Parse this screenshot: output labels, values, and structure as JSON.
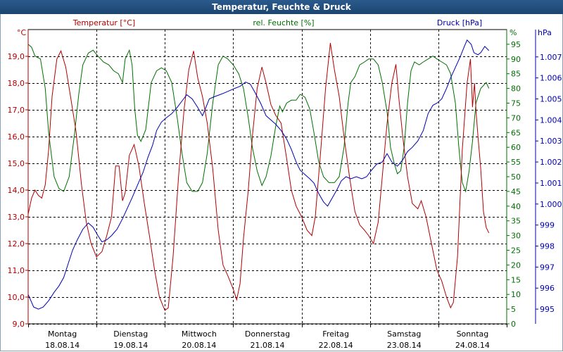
{
  "chart_data": {
    "type": "line",
    "title": "Temperatur, Feuchte & Druck",
    "series_labels": {
      "temp": "Temperatur [°C]",
      "hum": "rel. Feuchte [%]",
      "pres": "Druck [hPa]"
    },
    "unit_labels": {
      "temp": "°C",
      "hum": "%",
      "pres": "hPa"
    },
    "colors": {
      "temp": "#b00000",
      "hum": "#007000",
      "pres": "#0000b0",
      "title_bg": "#1f4f7e",
      "grid": "#000000"
    },
    "days": [
      {
        "name": "Montag",
        "date": "18.08.14"
      },
      {
        "name": "Dienstag",
        "date": "19.08.14"
      },
      {
        "name": "Mittwoch",
        "date": "20.08.14"
      },
      {
        "name": "Donnerstag",
        "date": "21.08.14"
      },
      {
        "name": "Freitag",
        "date": "22.08.14"
      },
      {
        "name": "Samstag",
        "date": "23.08.14"
      },
      {
        "name": "Sonntag",
        "date": "24.08.14"
      }
    ],
    "xlim_days": [
      0,
      7
    ],
    "temp_axis": {
      "ylim": [
        9.0,
        20.0
      ],
      "ticks": [
        "9,0",
        "10,0",
        "11,0",
        "12,0",
        "13,0",
        "14,0",
        "15,0",
        "16,0",
        "17,0",
        "18,0",
        "19,0"
      ]
    },
    "hum_axis": {
      "ylim": [
        0,
        100
      ],
      "ticks": [
        "0",
        "5",
        "10",
        "15",
        "20",
        "25",
        "30",
        "35",
        "40",
        "45",
        "50",
        "55",
        "60",
        "65",
        "70",
        "75",
        "80",
        "85",
        "90",
        "95"
      ]
    },
    "pres_axis": {
      "ylim": [
        994.3,
        1008.3
      ],
      "ticks": [
        "995",
        "996",
        "997",
        "998",
        "999",
        "1.000",
        "1.001",
        "1.002",
        "1.003",
        "1.004",
        "1.005",
        "1.006",
        "1.007"
      ]
    },
    "grid": true,
    "temperature": [
      [
        0.0,
        13.1
      ],
      [
        0.05,
        13.7
      ],
      [
        0.1,
        14.0
      ],
      [
        0.15,
        13.8
      ],
      [
        0.2,
        13.7
      ],
      [
        0.25,
        14.2
      ],
      [
        0.3,
        15.5
      ],
      [
        0.35,
        17.5
      ],
      [
        0.42,
        18.9
      ],
      [
        0.48,
        19.2
      ],
      [
        0.55,
        18.6
      ],
      [
        0.62,
        17.5
      ],
      [
        0.7,
        16.2
      ],
      [
        0.78,
        14.2
      ],
      [
        0.85,
        12.8
      ],
      [
        0.92,
        12.0
      ],
      [
        1.0,
        11.5
      ],
      [
        1.08,
        11.7
      ],
      [
        1.15,
        12.3
      ],
      [
        1.22,
        13.0
      ],
      [
        1.28,
        14.9
      ],
      [
        1.33,
        14.9
      ],
      [
        1.38,
        13.6
      ],
      [
        1.42,
        13.9
      ],
      [
        1.48,
        15.3
      ],
      [
        1.55,
        15.7
      ],
      [
        1.62,
        14.9
      ],
      [
        1.7,
        13.5
      ],
      [
        1.78,
        12.2
      ],
      [
        1.85,
        11.0
      ],
      [
        1.92,
        10.0
      ],
      [
        2.0,
        9.5
      ],
      [
        2.05,
        9.6
      ],
      [
        2.12,
        11.5
      ],
      [
        2.2,
        14.5
      ],
      [
        2.28,
        17.0
      ],
      [
        2.35,
        18.5
      ],
      [
        2.42,
        19.2
      ],
      [
        2.48,
        18.2
      ],
      [
        2.55,
        17.5
      ],
      [
        2.62,
        16.5
      ],
      [
        2.7,
        14.8
      ],
      [
        2.78,
        12.5
      ],
      [
        2.85,
        11.2
      ],
      [
        2.92,
        10.8
      ],
      [
        3.0,
        10.3
      ],
      [
        3.05,
        9.9
      ],
      [
        3.1,
        10.5
      ],
      [
        3.15,
        12.2
      ],
      [
        3.22,
        14.0
      ],
      [
        3.28,
        16.0
      ],
      [
        3.35,
        17.8
      ],
      [
        3.42,
        18.6
      ],
      [
        3.48,
        18.0
      ],
      [
        3.55,
        17.2
      ],
      [
        3.62,
        16.8
      ],
      [
        3.7,
        16.5
      ],
      [
        3.78,
        15.2
      ],
      [
        3.85,
        14.0
      ],
      [
        3.92,
        13.4
      ],
      [
        4.0,
        13.0
      ],
      [
        4.08,
        12.5
      ],
      [
        4.15,
        12.3
      ],
      [
        4.2,
        13.0
      ],
      [
        4.28,
        15.5
      ],
      [
        4.35,
        17.8
      ],
      [
        4.42,
        19.5
      ],
      [
        4.48,
        18.5
      ],
      [
        4.55,
        17.5
      ],
      [
        4.62,
        16.0
      ],
      [
        4.7,
        14.5
      ],
      [
        4.78,
        13.2
      ],
      [
        4.85,
        12.7
      ],
      [
        4.92,
        12.5
      ],
      [
        4.98,
        12.3
      ],
      [
        5.05,
        12.0
      ],
      [
        5.12,
        12.8
      ],
      [
        5.18,
        14.5
      ],
      [
        5.25,
        16.5
      ],
      [
        5.32,
        18.0
      ],
      [
        5.38,
        18.7
      ],
      [
        5.42,
        17.5
      ],
      [
        5.48,
        16.0
      ],
      [
        5.55,
        14.5
      ],
      [
        5.62,
        13.5
      ],
      [
        5.7,
        13.3
      ],
      [
        5.75,
        13.6
      ],
      [
        5.82,
        13.0
      ],
      [
        5.9,
        12.0
      ],
      [
        5.98,
        11.0
      ],
      [
        6.05,
        10.6
      ],
      [
        6.12,
        10.0
      ],
      [
        6.18,
        9.6
      ],
      [
        6.22,
        9.8
      ],
      [
        6.28,
        11.5
      ],
      [
        6.35,
        15.5
      ],
      [
        6.42,
        18.0
      ],
      [
        6.47,
        18.9
      ],
      [
        6.5,
        17.1
      ],
      [
        6.53,
        18.0
      ],
      [
        6.55,
        17.0
      ],
      [
        6.58,
        16.0
      ],
      [
        6.62,
        14.8
      ],
      [
        6.66,
        13.2
      ],
      [
        6.7,
        12.6
      ],
      [
        6.74,
        12.4
      ]
    ],
    "humidity": [
      [
        0.0,
        95
      ],
      [
        0.05,
        94
      ],
      [
        0.1,
        91
      ],
      [
        0.18,
        90
      ],
      [
        0.25,
        80
      ],
      [
        0.3,
        65
      ],
      [
        0.38,
        50
      ],
      [
        0.45,
        46
      ],
      [
        0.52,
        45
      ],
      [
        0.6,
        50
      ],
      [
        0.68,
        65
      ],
      [
        0.74,
        78
      ],
      [
        0.8,
        88
      ],
      [
        0.88,
        92
      ],
      [
        0.95,
        93
      ],
      [
        1.02,
        91
      ],
      [
        1.1,
        89
      ],
      [
        1.18,
        88
      ],
      [
        1.25,
        86
      ],
      [
        1.32,
        85
      ],
      [
        1.38,
        82
      ],
      [
        1.42,
        90
      ],
      [
        1.48,
        93
      ],
      [
        1.52,
        88
      ],
      [
        1.56,
        73
      ],
      [
        1.6,
        64
      ],
      [
        1.65,
        62
      ],
      [
        1.72,
        66
      ],
      [
        1.8,
        82
      ],
      [
        1.88,
        86
      ],
      [
        1.95,
        87
      ],
      [
        2.02,
        86
      ],
      [
        2.1,
        82
      ],
      [
        2.18,
        70
      ],
      [
        2.25,
        58
      ],
      [
        2.32,
        48
      ],
      [
        2.4,
        45
      ],
      [
        2.48,
        45
      ],
      [
        2.55,
        48
      ],
      [
        2.62,
        58
      ],
      [
        2.7,
        75
      ],
      [
        2.78,
        88
      ],
      [
        2.85,
        91
      ],
      [
        2.92,
        90
      ],
      [
        3.0,
        88
      ],
      [
        3.08,
        85
      ],
      [
        3.15,
        80
      ],
      [
        3.22,
        70
      ],
      [
        3.28,
        60
      ],
      [
        3.35,
        52
      ],
      [
        3.42,
        47
      ],
      [
        3.48,
        50
      ],
      [
        3.55,
        57
      ],
      [
        3.62,
        67
      ],
      [
        3.68,
        74
      ],
      [
        3.72,
        72
      ],
      [
        3.78,
        75
      ],
      [
        3.85,
        76
      ],
      [
        3.92,
        76
      ],
      [
        3.98,
        78
      ],
      [
        4.05,
        77
      ],
      [
        4.12,
        73
      ],
      [
        4.18,
        65
      ],
      [
        4.25,
        55
      ],
      [
        4.32,
        50
      ],
      [
        4.4,
        48
      ],
      [
        4.48,
        48
      ],
      [
        4.55,
        50
      ],
      [
        4.62,
        60
      ],
      [
        4.68,
        75
      ],
      [
        4.72,
        82
      ],
      [
        4.78,
        84
      ],
      [
        4.85,
        88
      ],
      [
        4.92,
        89
      ],
      [
        4.98,
        90
      ],
      [
        5.05,
        90
      ],
      [
        5.12,
        88
      ],
      [
        5.18,
        82
      ],
      [
        5.25,
        72
      ],
      [
        5.3,
        60
      ],
      [
        5.35,
        55
      ],
      [
        5.4,
        51
      ],
      [
        5.45,
        52
      ],
      [
        5.5,
        60
      ],
      [
        5.55,
        75
      ],
      [
        5.6,
        86
      ],
      [
        5.65,
        89
      ],
      [
        5.72,
        88
      ],
      [
        5.78,
        89
      ],
      [
        5.85,
        90
      ],
      [
        5.92,
        91
      ],
      [
        5.98,
        90
      ],
      [
        6.05,
        89
      ],
      [
        6.12,
        88
      ],
      [
        6.18,
        85
      ],
      [
        6.25,
        75
      ],
      [
        6.3,
        60
      ],
      [
        6.35,
        48
      ],
      [
        6.4,
        45
      ],
      [
        6.45,
        52
      ],
      [
        6.5,
        62
      ],
      [
        6.55,
        75
      ],
      [
        6.62,
        80
      ],
      [
        6.7,
        82
      ],
      [
        6.74,
        80
      ]
    ],
    "pressure": [
      [
        0.0,
        995.7
      ],
      [
        0.08,
        995.1
      ],
      [
        0.15,
        995.0
      ],
      [
        0.22,
        995.1
      ],
      [
        0.3,
        995.4
      ],
      [
        0.38,
        995.8
      ],
      [
        0.45,
        996.1
      ],
      [
        0.52,
        996.5
      ],
      [
        0.58,
        997.1
      ],
      [
        0.65,
        997.8
      ],
      [
        0.72,
        998.3
      ],
      [
        0.8,
        998.8
      ],
      [
        0.88,
        999.1
      ],
      [
        0.95,
        998.9
      ],
      [
        1.02,
        998.5
      ],
      [
        1.08,
        998.2
      ],
      [
        1.15,
        998.3
      ],
      [
        1.22,
        998.5
      ],
      [
        1.3,
        998.8
      ],
      [
        1.38,
        999.3
      ],
      [
        1.45,
        999.8
      ],
      [
        1.52,
        1000.3
      ],
      [
        1.6,
        1000.9
      ],
      [
        1.68,
        1001.5
      ],
      [
        1.75,
        1002.2
      ],
      [
        1.82,
        1002.8
      ],
      [
        1.88,
        1003.5
      ],
      [
        1.95,
        1003.9
      ],
      [
        2.02,
        1004.1
      ],
      [
        2.1,
        1004.3
      ],
      [
        2.18,
        1004.6
      ],
      [
        2.25,
        1004.9
      ],
      [
        2.32,
        1005.2
      ],
      [
        2.4,
        1005.0
      ],
      [
        2.48,
        1004.6
      ],
      [
        2.55,
        1004.2
      ],
      [
        2.6,
        1004.6
      ],
      [
        2.65,
        1005.0
      ],
      [
        2.72,
        1005.1
      ],
      [
        2.8,
        1005.2
      ],
      [
        2.88,
        1005.3
      ],
      [
        2.95,
        1005.4
      ],
      [
        3.02,
        1005.5
      ],
      [
        3.1,
        1005.6
      ],
      [
        3.18,
        1005.8
      ],
      [
        3.25,
        1005.7
      ],
      [
        3.32,
        1005.3
      ],
      [
        3.4,
        1004.8
      ],
      [
        3.48,
        1004.2
      ],
      [
        3.55,
        1004.0
      ],
      [
        3.62,
        1003.8
      ],
      [
        3.7,
        1003.5
      ],
      [
        3.78,
        1003.1
      ],
      [
        3.85,
        1002.6
      ],
      [
        3.92,
        1002.0
      ],
      [
        3.98,
        1001.6
      ],
      [
        4.05,
        1001.4
      ],
      [
        4.12,
        1001.2
      ],
      [
        4.18,
        1001.0
      ],
      [
        4.25,
        1000.5
      ],
      [
        4.32,
        1000.1
      ],
      [
        4.38,
        999.9
      ],
      [
        4.45,
        1000.3
      ],
      [
        4.52,
        1000.7
      ],
      [
        4.58,
        1001.1
      ],
      [
        4.65,
        1001.3
      ],
      [
        4.72,
        1001.2
      ],
      [
        4.8,
        1001.3
      ],
      [
        4.88,
        1001.2
      ],
      [
        4.95,
        1001.3
      ],
      [
        5.02,
        1001.6
      ],
      [
        5.1,
        1001.9
      ],
      [
        5.18,
        1002.0
      ],
      [
        5.25,
        1002.4
      ],
      [
        5.32,
        1002.0
      ],
      [
        5.4,
        1001.8
      ],
      [
        5.48,
        1002.1
      ],
      [
        5.55,
        1002.5
      ],
      [
        5.62,
        1002.7
      ],
      [
        5.7,
        1003.0
      ],
      [
        5.78,
        1003.5
      ],
      [
        5.85,
        1004.3
      ],
      [
        5.92,
        1004.7
      ],
      [
        5.98,
        1004.8
      ],
      [
        6.05,
        1005.0
      ],
      [
        6.12,
        1005.5
      ],
      [
        6.18,
        1006.0
      ],
      [
        6.25,
        1006.5
      ],
      [
        6.32,
        1007.0
      ],
      [
        6.38,
        1007.5
      ],
      [
        6.42,
        1007.8
      ],
      [
        6.48,
        1007.6
      ],
      [
        6.52,
        1007.2
      ],
      [
        6.58,
        1007.1
      ],
      [
        6.62,
        1007.2
      ],
      [
        6.68,
        1007.5
      ],
      [
        6.74,
        1007.3
      ]
    ]
  }
}
